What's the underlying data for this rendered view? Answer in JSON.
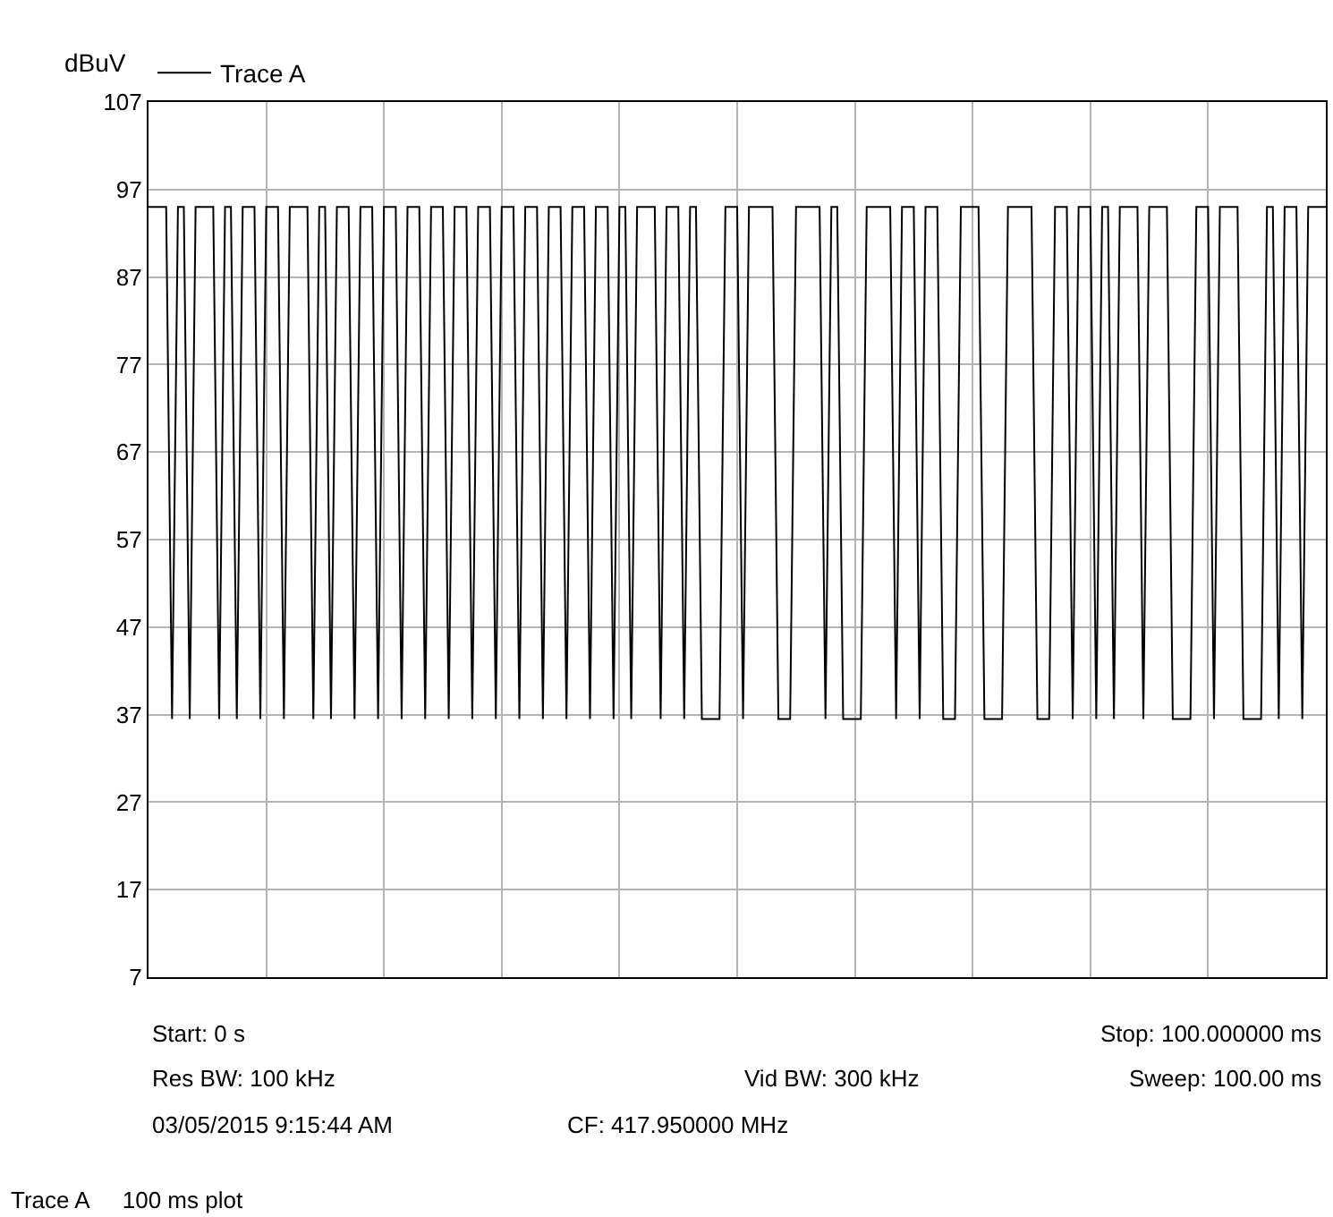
{
  "chart_data": {
    "type": "line",
    "ylabel": "dBuV",
    "categories": [
      null,
      null,
      null,
      null,
      null,
      null,
      null,
      null,
      null,
      null,
      null,
      null,
      null,
      null,
      null,
      null,
      null,
      null,
      null,
      null,
      null,
      null,
      null,
      null,
      null,
      null,
      null,
      null,
      null,
      null,
      null,
      null,
      null,
      null,
      null,
      null,
      null,
      null,
      null,
      null,
      null,
      null,
      null,
      null,
      null,
      null,
      null,
      null,
      null,
      null,
      null,
      null,
      null,
      null,
      null,
      null,
      null,
      null,
      null,
      null,
      null,
      null,
      null,
      null,
      null,
      null,
      null,
      null,
      null,
      null,
      null,
      null,
      null,
      null,
      null,
      null,
      null,
      null,
      null,
      null,
      null,
      null,
      null,
      null,
      null,
      null,
      null,
      null,
      null,
      null,
      null,
      null,
      null,
      null,
      null,
      null,
      null,
      null,
      null,
      null,
      null,
      null,
      null,
      null,
      null,
      null,
      null,
      null,
      null,
      null,
      null,
      null,
      null,
      null,
      null,
      null,
      null,
      null,
      null,
      null,
      null,
      null,
      null,
      null,
      null,
      null,
      null,
      null,
      null,
      null,
      null,
      null,
      null,
      null,
      null,
      null,
      null,
      null,
      null,
      null,
      null,
      null,
      null,
      null,
      null,
      null,
      null,
      null,
      null,
      null,
      null,
      null,
      null,
      null,
      null,
      null,
      null,
      null,
      null,
      null,
      null,
      null,
      null,
      null,
      null,
      null,
      null,
      null,
      null,
      null,
      null,
      null,
      null,
      null,
      null,
      null,
      null,
      null,
      null,
      null,
      null,
      null,
      null,
      null,
      null,
      null,
      null,
      null,
      null,
      null,
      null,
      null,
      null,
      null,
      null,
      null,
      null,
      null,
      null,
      null,
      null
    ],
    "ylim": [
      7,
      107
    ],
    "yticks": [
      7,
      17,
      27,
      37,
      47,
      57,
      67,
      77,
      87,
      97,
      107
    ],
    "tick_labels": "y",
    "grid": true,
    "legend": "top left",
    "series": [
      {
        "name": "Trace A",
        "color": "#000000",
        "values": [
          95,
          95,
          95,
          95,
          36.5,
          95,
          95,
          36.5,
          95,
          95,
          95,
          95,
          36.5,
          95,
          95,
          36.5,
          95,
          95,
          95,
          36.5,
          95,
          95,
          95,
          36.5,
          95,
          95,
          95,
          95,
          36.5,
          95,
          95,
          36.5,
          95,
          95,
          95,
          36.5,
          95,
          95,
          95,
          36.5,
          95,
          95,
          95,
          36.5,
          95,
          95,
          95,
          36.5,
          95,
          95,
          95,
          36.5,
          95,
          95,
          95,
          36.5,
          95,
          95,
          95,
          36.5,
          95,
          95,
          95,
          36.5,
          95,
          95,
          95,
          36.5,
          95,
          95,
          95,
          36.5,
          95,
          95,
          95,
          36.5,
          95,
          95,
          95,
          36.5,
          95,
          95,
          36.5,
          95,
          95,
          95,
          95,
          36.5,
          95,
          95,
          95,
          36.5,
          95,
          95,
          36.5,
          36.5,
          36.5,
          36.5,
          95,
          95,
          95,
          36.5,
          95,
          95,
          95,
          95,
          95,
          36.5,
          36.5,
          36.5,
          95,
          95,
          95,
          95,
          95,
          36.5,
          95,
          95,
          36.5,
          36.5,
          36.5,
          36.5,
          95,
          95,
          95,
          95,
          95,
          36.5,
          95,
          95,
          95,
          36.5,
          95,
          95,
          95,
          36.5,
          36.5,
          36.5,
          95,
          95,
          95,
          95,
          36.5,
          36.5,
          36.5,
          36.5,
          95,
          95,
          95,
          95,
          95,
          36.5,
          36.5,
          36.5,
          95,
          95,
          95,
          36.5,
          95,
          95,
          95,
          36.5,
          95,
          95,
          36.5,
          95,
          95,
          95,
          95,
          36.5,
          95,
          95,
          95,
          95,
          36.5,
          36.5,
          36.5,
          36.5,
          95,
          95,
          95,
          36.5,
          95,
          95,
          95,
          95,
          36.5,
          36.5,
          36.5,
          36.5,
          95,
          95,
          36.5,
          95,
          95,
          95,
          36.5,
          95,
          95,
          95,
          95
        ]
      }
    ],
    "annotations": [
      "Start: 0 s",
      "Stop: 100.000000 ms",
      "Res BW: 100 kHz",
      "Vid BW: 300 kHz",
      "Sweep: 100.00 ms",
      "03/05/2015 9:15:44 AM",
      "CF: 417.950000 MHz",
      "Trace A     100 ms plot"
    ]
  }
}
